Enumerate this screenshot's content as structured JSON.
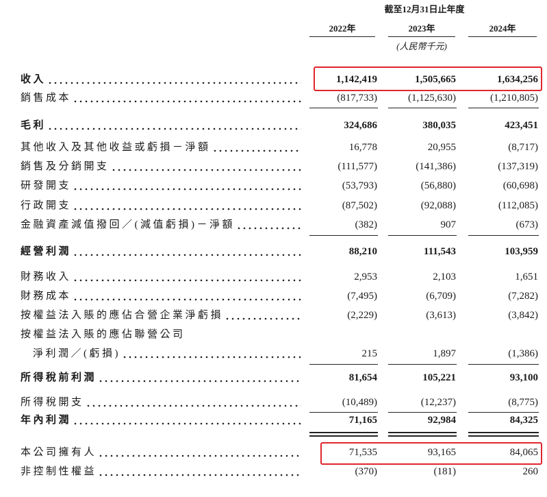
{
  "header": {
    "period": "截至12月31日止年度",
    "years": [
      "2022年",
      "2023年",
      "2024年"
    ],
    "unit": "(人民幣千元)"
  },
  "rows": [
    {
      "label": "收入",
      "bold": true,
      "values": [
        "1,142,419",
        "1,505,665",
        "1,634,256"
      ]
    },
    {
      "label": "銷售成本",
      "values": [
        "(817,733)",
        "(1,125,630)",
        "(1,210,805)"
      ]
    },
    {
      "label": "毛利",
      "bold": true,
      "values": [
        "324,686",
        "380,035",
        "423,451"
      ]
    },
    {
      "label": "其他收入及其他收益或虧損－淨額",
      "values": [
        "16,778",
        "20,955",
        "(8,717)"
      ]
    },
    {
      "label": "銷售及分銷開支",
      "values": [
        "(111,577)",
        "(141,386)",
        "(137,319)"
      ]
    },
    {
      "label": "研發開支",
      "values": [
        "(53,793)",
        "(56,880)",
        "(60,698)"
      ]
    },
    {
      "label": "行政開支",
      "values": [
        "(87,502)",
        "(92,088)",
        "(112,085)"
      ]
    },
    {
      "label": "金融資產減值撥回／(減值虧損)－淨額",
      "values": [
        "(382)",
        "907",
        "(673)"
      ]
    },
    {
      "label": "經營利潤",
      "bold": true,
      "values": [
        "88,210",
        "111,543",
        "103,959"
      ]
    },
    {
      "label": "財務收入",
      "values": [
        "2,953",
        "2,103",
        "1,651"
      ]
    },
    {
      "label": "財務成本",
      "values": [
        "(7,495)",
        "(6,709)",
        "(7,282)"
      ]
    },
    {
      "label": "按權益法入賬的應佔合營企業淨虧損",
      "values": [
        "(2,229)",
        "(3,613)",
        "(3,842)"
      ]
    },
    {
      "label": "按權益法入賬的應佔聯營公司",
      "sublabel": "淨利潤／(虧損)",
      "values": [
        "215",
        "1,897",
        "(1,386)"
      ]
    },
    {
      "label": "所得稅前利潤",
      "bold": true,
      "values": [
        "81,654",
        "105,221",
        "93,100"
      ]
    },
    {
      "label": "所得稅開支",
      "values": [
        "(10,489)",
        "(12,237)",
        "(8,775)"
      ]
    },
    {
      "label": "年內利潤",
      "bold": true,
      "values": [
        "71,165",
        "92,984",
        "84,325"
      ]
    },
    {
      "label": "本公司擁有人",
      "values": [
        "71,535",
        "93,165",
        "84,065"
      ]
    },
    {
      "label": "非控制性權益",
      "values": [
        "(370)",
        "(181)",
        "260"
      ]
    }
  ]
}
